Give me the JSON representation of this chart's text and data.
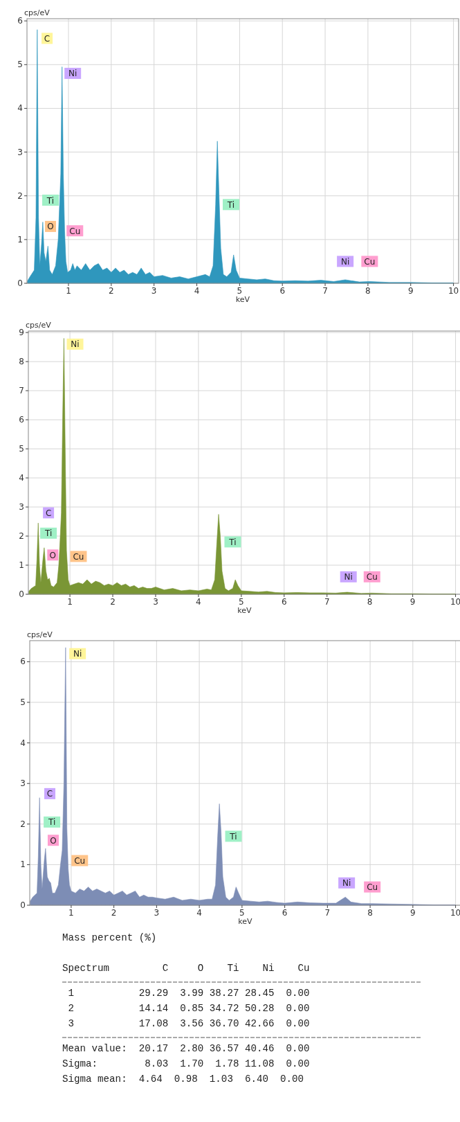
{
  "chart_data": [
    {
      "type": "area",
      "ylabel": "cps/eV",
      "xlabel": "keV",
      "xlim": [
        0.03,
        10.12
      ],
      "ylim": [
        0,
        6.05
      ],
      "xticks": [
        1,
        2,
        3,
        4,
        5,
        6,
        7,
        8,
        9,
        10
      ],
      "yticks": [
        0,
        1,
        2,
        3,
        4,
        5,
        6
      ],
      "grid": true,
      "series": [
        {
          "color": "#2f97bd",
          "x": [
            0.04,
            0.1,
            0.2,
            0.24,
            0.27,
            0.3,
            0.33,
            0.37,
            0.4,
            0.43,
            0.47,
            0.52,
            0.56,
            0.62,
            0.7,
            0.76,
            0.82,
            0.85,
            0.88,
            0.91,
            0.94,
            0.98,
            1.05,
            1.1,
            1.15,
            1.2,
            1.3,
            1.4,
            1.5,
            1.6,
            1.7,
            1.8,
            1.9,
            2.0,
            2.1,
            2.2,
            2.3,
            2.4,
            2.5,
            2.6,
            2.7,
            2.8,
            2.9,
            3.0,
            3.2,
            3.4,
            3.6,
            3.8,
            4.0,
            4.2,
            4.3,
            4.38,
            4.44,
            4.48,
            4.52,
            4.56,
            4.62,
            4.7,
            4.8,
            4.86,
            4.92,
            5.0,
            5.2,
            5.4,
            5.6,
            5.8,
            6.0,
            6.3,
            6.6,
            6.9,
            7.2,
            7.47,
            7.8,
            8.04,
            8.5,
            9.0,
            9.5,
            10.0
          ],
          "values": [
            0.05,
            0.15,
            0.3,
            1.5,
            5.8,
            1.5,
            0.4,
            0.9,
            1.4,
            0.7,
            0.5,
            0.85,
            0.3,
            0.2,
            0.4,
            1.0,
            2.5,
            4.95,
            2.5,
            1.2,
            0.5,
            0.25,
            0.3,
            0.45,
            0.3,
            0.4,
            0.3,
            0.45,
            0.3,
            0.4,
            0.45,
            0.3,
            0.35,
            0.25,
            0.35,
            0.25,
            0.3,
            0.2,
            0.25,
            0.2,
            0.35,
            0.2,
            0.25,
            0.15,
            0.18,
            0.12,
            0.15,
            0.1,
            0.15,
            0.2,
            0.15,
            0.4,
            1.8,
            3.25,
            2.0,
            0.8,
            0.2,
            0.15,
            0.25,
            0.65,
            0.3,
            0.12,
            0.1,
            0.08,
            0.1,
            0.06,
            0.05,
            0.06,
            0.05,
            0.07,
            0.04,
            0.08,
            0.03,
            0.04,
            0.02,
            0.02,
            0.01,
            0.01
          ]
        }
      ],
      "annotations": [
        {
          "text": "C",
          "x": 0.5,
          "y": 5.6
        },
        {
          "text": "Ni",
          "x": 1.1,
          "y": 4.8
        },
        {
          "text": "Ti",
          "x": 4.8,
          "y": 1.8
        },
        {
          "text": "Ti",
          "x": 0.58,
          "y": 1.9
        },
        {
          "text": "O",
          "x": 0.58,
          "y": 1.3
        },
        {
          "text": "Cu",
          "x": 1.15,
          "y": 1.2
        },
        {
          "text": "Ni",
          "x": 7.47,
          "y": 0.5
        },
        {
          "text": "Cu",
          "x": 8.04,
          "y": 0.5
        }
      ]
    },
    {
      "type": "area",
      "ylabel": "cps/eV",
      "xlabel": "keV",
      "xlim": [
        0.03,
        10.12
      ],
      "ylim": [
        0,
        9.05
      ],
      "xticks": [
        1,
        2,
        3,
        4,
        5,
        6,
        7,
        8,
        9,
        10
      ],
      "yticks": [
        0,
        1,
        2,
        3,
        4,
        5,
        6,
        7,
        8,
        9
      ],
      "grid": true,
      "series": [
        {
          "color": "#7a9635",
          "x": [
            0.04,
            0.1,
            0.2,
            0.23,
            0.26,
            0.29,
            0.32,
            0.37,
            0.4,
            0.44,
            0.48,
            0.52,
            0.56,
            0.62,
            0.7,
            0.74,
            0.77,
            0.8,
            0.83,
            0.86,
            0.89,
            0.92,
            0.96,
            1.0,
            1.1,
            1.2,
            1.3,
            1.4,
            1.5,
            1.6,
            1.7,
            1.8,
            1.9,
            2.0,
            2.1,
            2.2,
            2.3,
            2.4,
            2.5,
            2.6,
            2.7,
            2.8,
            2.9,
            3.0,
            3.2,
            3.4,
            3.6,
            3.8,
            4.0,
            4.2,
            4.3,
            4.38,
            4.43,
            4.47,
            4.51,
            4.55,
            4.62,
            4.7,
            4.8,
            4.86,
            4.92,
            5.0,
            5.2,
            5.4,
            5.6,
            5.8,
            6.0,
            6.3,
            6.6,
            6.9,
            7.2,
            7.47,
            7.8,
            8.04,
            8.5,
            9.0,
            9.5,
            10.0
          ],
          "values": [
            0.1,
            0.2,
            0.3,
            1.2,
            2.45,
            1.0,
            0.4,
            1.2,
            1.6,
            0.8,
            0.5,
            0.55,
            0.3,
            0.25,
            0.4,
            1.0,
            1.85,
            2.8,
            6.0,
            8.8,
            5.0,
            1.5,
            0.5,
            0.3,
            0.35,
            0.4,
            0.35,
            0.5,
            0.35,
            0.45,
            0.4,
            0.3,
            0.35,
            0.3,
            0.4,
            0.3,
            0.35,
            0.25,
            0.3,
            0.2,
            0.25,
            0.2,
            0.2,
            0.25,
            0.15,
            0.2,
            0.12,
            0.15,
            0.12,
            0.18,
            0.15,
            0.5,
            1.8,
            2.75,
            2.0,
            0.8,
            0.2,
            0.12,
            0.2,
            0.5,
            0.3,
            0.12,
            0.1,
            0.08,
            0.1,
            0.06,
            0.05,
            0.06,
            0.05,
            0.05,
            0.04,
            0.07,
            0.03,
            0.04,
            0.02,
            0.02,
            0.01,
            0.01
          ]
        }
      ],
      "annotations": [
        {
          "text": "Ni",
          "x": 1.12,
          "y": 8.6
        },
        {
          "text": "C",
          "x": 0.5,
          "y": 2.8
        },
        {
          "text": "Ti",
          "x": 4.8,
          "y": 1.8
        },
        {
          "text": "Ti",
          "x": 0.5,
          "y": 2.1
        },
        {
          "text": "Cu",
          "x": 1.2,
          "y": 1.3
        },
        {
          "text": "O",
          "x": 0.6,
          "y": 1.35
        },
        {
          "text": "Ni",
          "x": 7.5,
          "y": 0.6
        },
        {
          "text": "Cu",
          "x": 8.05,
          "y": 0.6
        }
      ]
    },
    {
      "type": "area",
      "ylabel": "cps/eV",
      "xlabel": "keV",
      "xlim": [
        0.03,
        10.12
      ],
      "ylim": [
        0,
        6.52
      ],
      "xticks": [
        1,
        2,
        3,
        4,
        5,
        6,
        7,
        8,
        9,
        10
      ],
      "yticks": [
        0,
        1,
        2,
        3,
        4,
        5,
        6
      ],
      "grid": true,
      "series": [
        {
          "color": "#7d8db5",
          "x": [
            0.04,
            0.1,
            0.2,
            0.23,
            0.26,
            0.29,
            0.32,
            0.37,
            0.4,
            0.44,
            0.48,
            0.52,
            0.56,
            0.62,
            0.7,
            0.75,
            0.79,
            0.83,
            0.87,
            0.9,
            0.93,
            0.96,
            1.0,
            1.1,
            1.2,
            1.3,
            1.4,
            1.5,
            1.6,
            1.7,
            1.8,
            1.9,
            2.0,
            2.1,
            2.2,
            2.3,
            2.4,
            2.5,
            2.6,
            2.7,
            2.8,
            2.9,
            3.0,
            3.2,
            3.4,
            3.6,
            3.8,
            4.0,
            4.2,
            4.3,
            4.38,
            4.43,
            4.47,
            4.51,
            4.55,
            4.62,
            4.7,
            4.8,
            4.86,
            4.92,
            5.0,
            5.2,
            5.4,
            5.6,
            5.8,
            6.0,
            6.3,
            6.6,
            6.9,
            7.2,
            7.3,
            7.42,
            7.55,
            7.8,
            8.04,
            8.5,
            9.0,
            9.5,
            10.0
          ],
          "values": [
            0.1,
            0.2,
            0.3,
            1.2,
            2.65,
            1.0,
            0.4,
            1.1,
            1.4,
            0.7,
            0.6,
            0.55,
            0.3,
            0.3,
            0.5,
            1.0,
            1.35,
            3.0,
            6.35,
            1.9,
            0.9,
            0.5,
            0.35,
            0.3,
            0.4,
            0.35,
            0.45,
            0.35,
            0.4,
            0.35,
            0.3,
            0.35,
            0.25,
            0.3,
            0.35,
            0.25,
            0.3,
            0.35,
            0.2,
            0.25,
            0.2,
            0.2,
            0.18,
            0.15,
            0.2,
            0.12,
            0.15,
            0.12,
            0.15,
            0.15,
            0.5,
            1.7,
            2.5,
            1.8,
            0.7,
            0.2,
            0.12,
            0.2,
            0.45,
            0.3,
            0.12,
            0.1,
            0.08,
            0.1,
            0.07,
            0.05,
            0.08,
            0.06,
            0.05,
            0.05,
            0.12,
            0.2,
            0.08,
            0.04,
            0.04,
            0.03,
            0.02,
            0.01,
            0.01
          ]
        }
      ],
      "annotations": [
        {
          "text": "Ni",
          "x": 1.15,
          "y": 6.2
        },
        {
          "text": "C",
          "x": 0.5,
          "y": 2.75
        },
        {
          "text": "Ti",
          "x": 0.55,
          "y": 2.05
        },
        {
          "text": "Ti",
          "x": 4.8,
          "y": 1.7
        },
        {
          "text": "Cu",
          "x": 1.2,
          "y": 1.1
        },
        {
          "text": "O",
          "x": 0.58,
          "y": 1.6
        },
        {
          "text": "Ni",
          "x": 7.45,
          "y": 0.55
        },
        {
          "text": "Cu",
          "x": 8.05,
          "y": 0.45
        }
      ]
    },
    {
      "type": "other",
      "title": "Mass percent (%)",
      "annotations": [
        "Spectrum         C     O    Ti    Ni    Cu",
        " 1           29.29  3.99 38.27 28.45  0.00",
        " 2           14.14  0.85 34.72 50.28  0.00",
        " 3           17.08  3.56 36.70 42.66  0.00",
        "Mean value:  20.17  2.80 36.57 40.46  0.00",
        "Sigma:        8.03  1.70  1.78 11.08  0.00",
        "Sigma mean:  4.64  0.98  1.03  6.40  0.00"
      ]
    }
  ]
}
